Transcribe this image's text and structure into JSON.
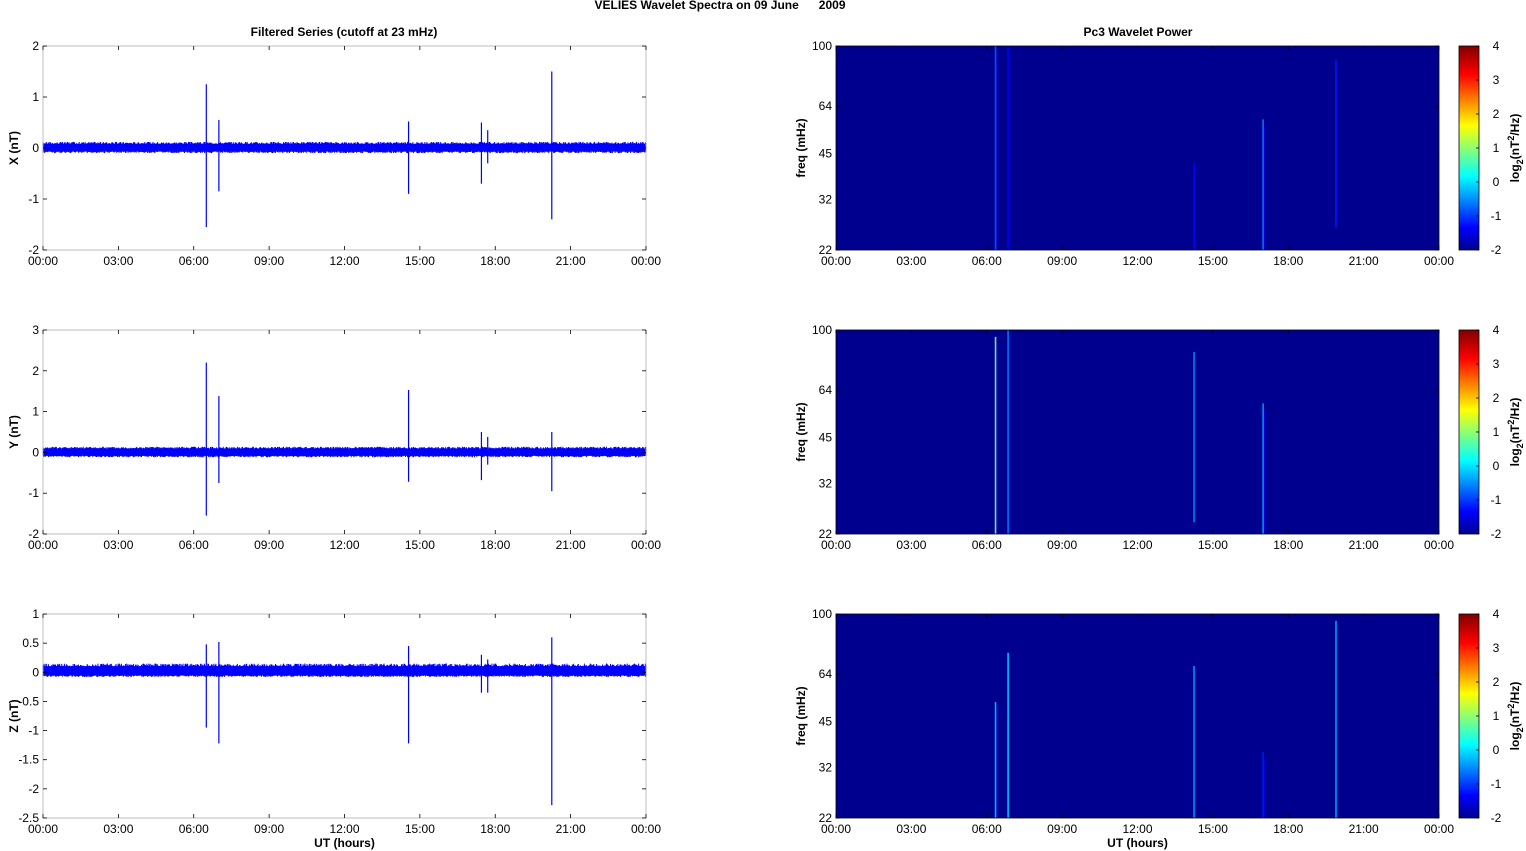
{
  "figure": {
    "title": "VELIES Wavelet Spectra on 09 June      2009",
    "left_column_title": "Filtered Series (cutoff at 23 mHz)",
    "right_column_title": "Pc3 Wavelet Power"
  },
  "colors": {
    "series": "#0000ff",
    "background_field": "#00008f",
    "axis": "#000000",
    "colormap_jet": [
      "#00008f",
      "#0000ff",
      "#0080ff",
      "#00ffff",
      "#80ff80",
      "#ffff00",
      "#ff8000",
      "#ff0000",
      "#800000"
    ]
  },
  "chart_data": [
    {
      "type": "line",
      "panel": "X",
      "title": "Filtered Series (cutoff at 23 mHz)",
      "xlabel": "",
      "ylabel": "X (nT)",
      "xlim": [
        0,
        24
      ],
      "ylim": [
        -2,
        2
      ],
      "xticks": [
        "00:00",
        "03:00",
        "06:00",
        "09:00",
        "12:00",
        "15:00",
        "18:00",
        "21:00",
        "00:00"
      ],
      "yticks": [
        "-2",
        "-1",
        "0",
        "1",
        "2"
      ],
      "ytick_values": [
        -2,
        -1,
        0,
        1,
        2
      ],
      "noise_band": [
        -0.1,
        0.12
      ],
      "spikes": [
        {
          "t": 6.5,
          "min": -1.55,
          "max": 1.25
        },
        {
          "t": 7.0,
          "min": -0.85,
          "max": 0.55
        },
        {
          "t": 14.55,
          "min": -0.9,
          "max": 0.52
        },
        {
          "t": 17.45,
          "min": -0.7,
          "max": 0.5
        },
        {
          "t": 17.7,
          "min": -0.3,
          "max": 0.35
        },
        {
          "t": 20.25,
          "min": -1.4,
          "max": 1.5
        }
      ]
    },
    {
      "type": "line",
      "panel": "Y",
      "xlabel": "",
      "ylabel": "Y (nT)",
      "xlim": [
        0,
        24
      ],
      "ylim": [
        -2,
        3
      ],
      "xticks": [
        "00:00",
        "03:00",
        "06:00",
        "09:00",
        "12:00",
        "15:00",
        "18:00",
        "21:00",
        "00:00"
      ],
      "yticks": [
        "-2",
        "-1",
        "0",
        "1",
        "2",
        "3"
      ],
      "ytick_values": [
        -2,
        -1,
        0,
        1,
        2,
        3
      ],
      "noise_band": [
        -0.12,
        0.14
      ],
      "spikes": [
        {
          "t": 6.5,
          "min": -1.55,
          "max": 2.2
        },
        {
          "t": 7.0,
          "min": -0.75,
          "max": 1.38
        },
        {
          "t": 14.55,
          "min": -0.72,
          "max": 1.53
        },
        {
          "t": 17.45,
          "min": -0.68,
          "max": 0.5
        },
        {
          "t": 17.7,
          "min": -0.3,
          "max": 0.38
        },
        {
          "t": 20.25,
          "min": -0.95,
          "max": 0.5
        }
      ]
    },
    {
      "type": "line",
      "panel": "Z",
      "xlabel": "UT (hours)",
      "ylabel": "Z (nT)",
      "xlim": [
        0,
        24
      ],
      "ylim": [
        -2.5,
        1
      ],
      "xticks": [
        "00:00",
        "03:00",
        "06:00",
        "09:00",
        "12:00",
        "15:00",
        "18:00",
        "21:00",
        "00:00"
      ],
      "yticks": [
        "-2.5",
        "-2",
        "-1.5",
        "-1",
        "-0.5",
        "0",
        "0.5",
        "1"
      ],
      "ytick_values": [
        -2.5,
        -2,
        -1.5,
        -1,
        -0.5,
        0,
        0.5,
        1
      ],
      "noise_band": [
        -0.08,
        0.15
      ],
      "spikes": [
        {
          "t": 6.5,
          "min": -0.95,
          "max": 0.48
        },
        {
          "t": 7.0,
          "min": -1.22,
          "max": 0.52
        },
        {
          "t": 14.55,
          "min": -1.22,
          "max": 0.45
        },
        {
          "t": 17.45,
          "min": -0.35,
          "max": 0.3
        },
        {
          "t": 17.7,
          "min": -0.35,
          "max": 0.22
        },
        {
          "t": 20.25,
          "min": -2.28,
          "max": 0.6
        }
      ]
    },
    {
      "type": "heatmap",
      "panel": "X",
      "title": "Pc3 Wavelet Power",
      "xlabel": "",
      "ylabel": "freq (mHz)",
      "xlim": [
        0,
        24
      ],
      "ylim": [
        22,
        100
      ],
      "log_y": true,
      "xticks": [
        "00:00",
        "03:00",
        "06:00",
        "09:00",
        "12:00",
        "15:00",
        "18:00",
        "21:00",
        "00:00"
      ],
      "yticks": [
        "22",
        "32",
        "45",
        "64",
        "100"
      ],
      "ytick_values": [
        22,
        32,
        45,
        64,
        100
      ],
      "background_level": -2,
      "colorbar": {
        "label": "log2(nT2/Hz)",
        "label_base": "log",
        "label_sub": "2",
        "label_mid": "(nT",
        "label_sup": "2",
        "label_end": "/Hz)",
        "range": [
          -2,
          4
        ],
        "ticks": [
          "-2",
          "-1",
          "0",
          "1",
          "2",
          "3",
          "4"
        ]
      },
      "streaks": [
        {
          "t": 6.35,
          "fmin": 22,
          "fmax": 100,
          "level": -0.8
        },
        {
          "t": 6.85,
          "fmin": 22,
          "fmax": 100,
          "level": -1.4
        },
        {
          "t": 14.25,
          "fmin": 22,
          "fmax": 42,
          "level": -1.3
        },
        {
          "t": 17.0,
          "fmin": 22,
          "fmax": 58,
          "level": -0.6
        },
        {
          "t": 19.9,
          "fmin": 26,
          "fmax": 90,
          "level": -1.2
        }
      ]
    },
    {
      "type": "heatmap",
      "panel": "Y",
      "xlabel": "",
      "ylabel": "freq (mHz)",
      "xlim": [
        0,
        24
      ],
      "ylim": [
        22,
        100
      ],
      "log_y": true,
      "xticks": [
        "00:00",
        "03:00",
        "06:00",
        "09:00",
        "12:00",
        "15:00",
        "18:00",
        "21:00",
        "00:00"
      ],
      "yticks": [
        "22",
        "32",
        "45",
        "64",
        "100"
      ],
      "ytick_values": [
        22,
        32,
        45,
        64,
        100
      ],
      "background_level": -2,
      "colorbar": {
        "label": "log2(nT2/Hz)",
        "label_base": "log",
        "label_sub": "2",
        "label_mid": "(nT",
        "label_sup": "2",
        "label_end": "/Hz)",
        "range": [
          -2,
          4
        ],
        "ticks": [
          "-2",
          "-1",
          "0",
          "1",
          "2",
          "3",
          "4"
        ]
      },
      "streaks": [
        {
          "t": 6.35,
          "fmin": 22,
          "fmax": 95,
          "level": 0.9
        },
        {
          "t": 6.85,
          "fmin": 22,
          "fmax": 100,
          "level": -0.6
        },
        {
          "t": 14.25,
          "fmin": 24,
          "fmax": 85,
          "level": -0.5
        },
        {
          "t": 17.0,
          "fmin": 22,
          "fmax": 58,
          "level": -0.4
        }
      ]
    },
    {
      "type": "heatmap",
      "panel": "Z",
      "xlabel": "UT (hours)",
      "ylabel": "freq (mHz)",
      "xlim": [
        0,
        24
      ],
      "ylim": [
        22,
        100
      ],
      "log_y": true,
      "xticks": [
        "00:00",
        "03:00",
        "06:00",
        "09:00",
        "12:00",
        "15:00",
        "18:00",
        "21:00",
        "00:00"
      ],
      "yticks": [
        "22",
        "32",
        "45",
        "64",
        "100"
      ],
      "ytick_values": [
        22,
        32,
        45,
        64,
        100
      ],
      "background_level": -2,
      "colorbar": {
        "label": "log2(nT2/Hz)",
        "label_base": "log",
        "label_sub": "2",
        "label_mid": "(nT",
        "label_sup": "2",
        "label_end": "/Hz)",
        "range": [
          -2,
          4
        ],
        "ticks": [
          "-2",
          "-1",
          "0",
          "1",
          "2",
          "3",
          "4"
        ]
      },
      "streaks": [
        {
          "t": 6.35,
          "fmin": 22,
          "fmax": 52,
          "level": -0.2
        },
        {
          "t": 6.85,
          "fmin": 22,
          "fmax": 75,
          "level": -0.1
        },
        {
          "t": 14.25,
          "fmin": 22,
          "fmax": 68,
          "level": -0.4
        },
        {
          "t": 17.0,
          "fmin": 22,
          "fmax": 36,
          "level": -1.2
        },
        {
          "t": 19.9,
          "fmin": 22,
          "fmax": 95,
          "level": -0.3
        }
      ]
    }
  ]
}
